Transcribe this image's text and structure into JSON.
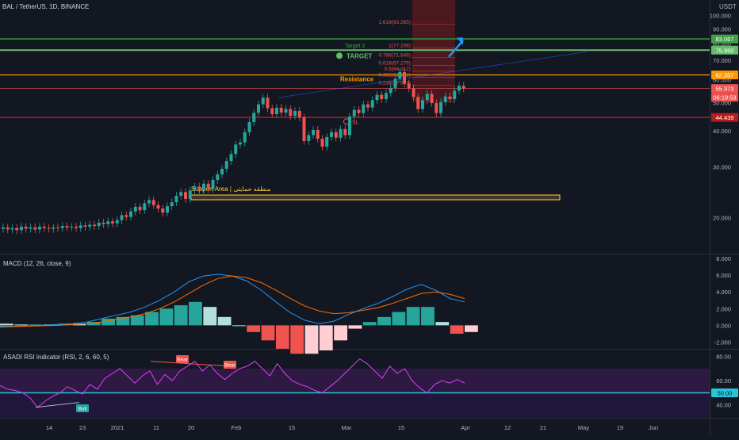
{
  "header": {
    "symbol": "BAL / TetherUS, 1D, BINANCE",
    "currency": "USDT"
  },
  "price_axis": {
    "ticks": [
      "100.000",
      "90.000",
      "80.000",
      "70.000",
      "60.000",
      "50.000",
      "40.000",
      "30.000",
      "20.000"
    ]
  },
  "price_labels": [
    {
      "text": "83.067",
      "color": "#43a047"
    },
    {
      "text": "75.950",
      "color": "#66bb6a"
    },
    {
      "text": "62.357",
      "color": "#ff9800"
    },
    {
      "text": "55.973",
      "color": "#ef5350"
    },
    {
      "text": "06:19:53",
      "color": "#ef5350"
    },
    {
      "text": "44.439",
      "color": "#b71c1c"
    }
  ],
  "annotations": {
    "target2": "Target 2",
    "target": "TARGET",
    "resistance": "Resistance",
    "support_area": "Support Area | منطقه حمایتی",
    "sl": "SL",
    "fib_levels": [
      "1.618(93.265)",
      "1(77.206)",
      "0.786(71.649)",
      "0.618(67.279)",
      "0.5(64.212)",
      "0.382(61.152)",
      "0.236(57.353)"
    ]
  },
  "macd": {
    "title": "MACD (12, 26, close, 9)",
    "ticks": [
      "8.000",
      "6.000",
      "4.000",
      "2.000",
      "0.000",
      "-2.000"
    ]
  },
  "rsi": {
    "title": "ASADI RSI Indicator (RSI, 2, 6, 60, 5)",
    "ticks": [
      "80.00",
      "60.00",
      "50.00",
      "40.00"
    ],
    "bear1": "Bear",
    "bear2": "Bear",
    "bull": "Bull"
  },
  "time_axis": {
    "ticks": [
      "14",
      "23",
      "2021",
      "11",
      "20",
      "Feb",
      "15",
      "Mar",
      "15",
      "Apr",
      "12",
      "21",
      "May",
      "19",
      "Jun"
    ]
  },
  "colors": {
    "up": "#26a69a",
    "down": "#ef5350",
    "bg": "#131722",
    "grid": "#1e222d"
  },
  "chart_data": {
    "type": "candlestick",
    "title": "BAL / TetherUS, 1D, BINANCE",
    "ylim": [
      15,
      105
    ],
    "closes": [
      18.5,
      18.2,
      18.4,
      18.1,
      18.6,
      18.3,
      18.5,
      18.2,
      18.6,
      18.4,
      18.3,
      18.5,
      18.4,
      18.7,
      18.5,
      18.6,
      18.4,
      18.8,
      18.6,
      18.9,
      18.7,
      19.2,
      19.0,
      19.4,
      19.1,
      19.6,
      20.4,
      20.1,
      21.0,
      21.8,
      21.2,
      22.4,
      23.0,
      22.1,
      21.5,
      20.8,
      21.9,
      22.6,
      23.8,
      24.5,
      23.2,
      24.8,
      25.6,
      24.9,
      26.2,
      25.1,
      27.0,
      28.2,
      29.5,
      31.4,
      33.2,
      35.8,
      36.4,
      39.5,
      42.8,
      46.1,
      49.3,
      52.0,
      47.8,
      45.6,
      48.0,
      46.2,
      47.5,
      45.0,
      46.8,
      44.5,
      36.8,
      38.6,
      40.2,
      37.5,
      35.2,
      38.0,
      39.5,
      37.8,
      40.5,
      38.6,
      44.8,
      47.2,
      46.0,
      49.3,
      48.1,
      51.0,
      53.2,
      51.4,
      54.0,
      56.2,
      60.5,
      63.8,
      58.2,
      56.0,
      52.3,
      47.5,
      51.0,
      53.6,
      49.8,
      46.0,
      50.2,
      52.5,
      51.4,
      55.0,
      57.2,
      55.97
    ],
    "macd_line": [
      -0.1,
      -0.1,
      -0.05,
      0,
      0.1,
      0.2,
      0.4,
      0.8,
      1.2,
      1.6,
      2.2,
      3.0,
      4.0,
      5.2,
      5.9,
      6.1,
      5.9,
      5.3,
      4.2,
      2.8,
      1.5,
      0.6,
      0.2,
      0.5,
      1.3,
      2.0,
      2.6,
      3.4,
      4.3,
      4.9,
      4.2,
      3.2,
      2.8
    ],
    "signal_line": [
      -0.2,
      -0.15,
      -0.1,
      -0.05,
      0,
      0.1,
      0.2,
      0.4,
      0.7,
      1.0,
      1.4,
      2.0,
      2.8,
      3.8,
      4.8,
      5.6,
      5.9,
      5.7,
      5.1,
      4.2,
      3.2,
      2.3,
      1.7,
      1.4,
      1.5,
      1.8,
      2.1,
      2.6,
      3.2,
      3.8,
      4.0,
      3.7,
      3.2
    ],
    "rsi": [
      56,
      53,
      52,
      50,
      46,
      38,
      43,
      47,
      50,
      55,
      52,
      49,
      57,
      53,
      62,
      66,
      70,
      64,
      58,
      64,
      68,
      57,
      65,
      60,
      68,
      72,
      76,
      68,
      73,
      66,
      61,
      66,
      70,
      72,
      76,
      70,
      64,
      74,
      66,
      60,
      57,
      55,
      52,
      50,
      55,
      60,
      66,
      72,
      78,
      74,
      68,
      62,
      72,
      66,
      70,
      60,
      54,
      50,
      57,
      60,
      58,
      61,
      58
    ]
  }
}
